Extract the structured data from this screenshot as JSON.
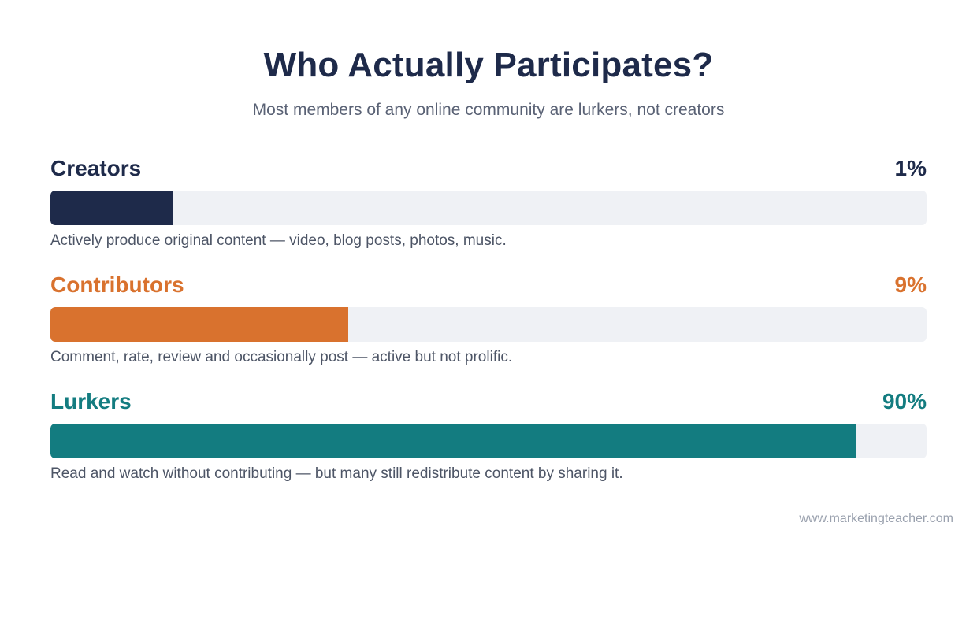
{
  "header": {
    "title": "Who Actually Participates?",
    "subtitle": "Most members of any online community are lurkers, not creators"
  },
  "rows": [
    {
      "label": "Creators",
      "value_text": "1%",
      "description": "Actively produce original content — video, blog posts, photos, music.",
      "color": "#1e2a4a",
      "fill_fraction": 0.14
    },
    {
      "label": "Contributors",
      "value_text": "9%",
      "description": "Comment, rate, review and occasionally post — active but not prolific.",
      "color": "#d9722e",
      "fill_fraction": 0.34
    },
    {
      "label": "Lurkers",
      "value_text": "90%",
      "description": "Read and watch without contributing — but many still redistribute content by sharing it.",
      "color": "#137c80",
      "fill_fraction": 0.92
    }
  ],
  "chart_data": {
    "type": "bar",
    "title": "Who Actually Participates?",
    "subtitle": "Most members of any online community are lurkers, not creators",
    "categories": [
      "Creators",
      "Contributors",
      "Lurkers"
    ],
    "values": [
      1,
      9,
      90
    ],
    "value_labels": [
      "1%",
      "9%",
      "90%"
    ],
    "orientation": "horizontal",
    "colors": [
      "#1e2a4a",
      "#d9722e",
      "#137c80"
    ],
    "grid": false,
    "legend": "none"
  },
  "footer": {
    "source": "www.marketingteacher.com"
  }
}
